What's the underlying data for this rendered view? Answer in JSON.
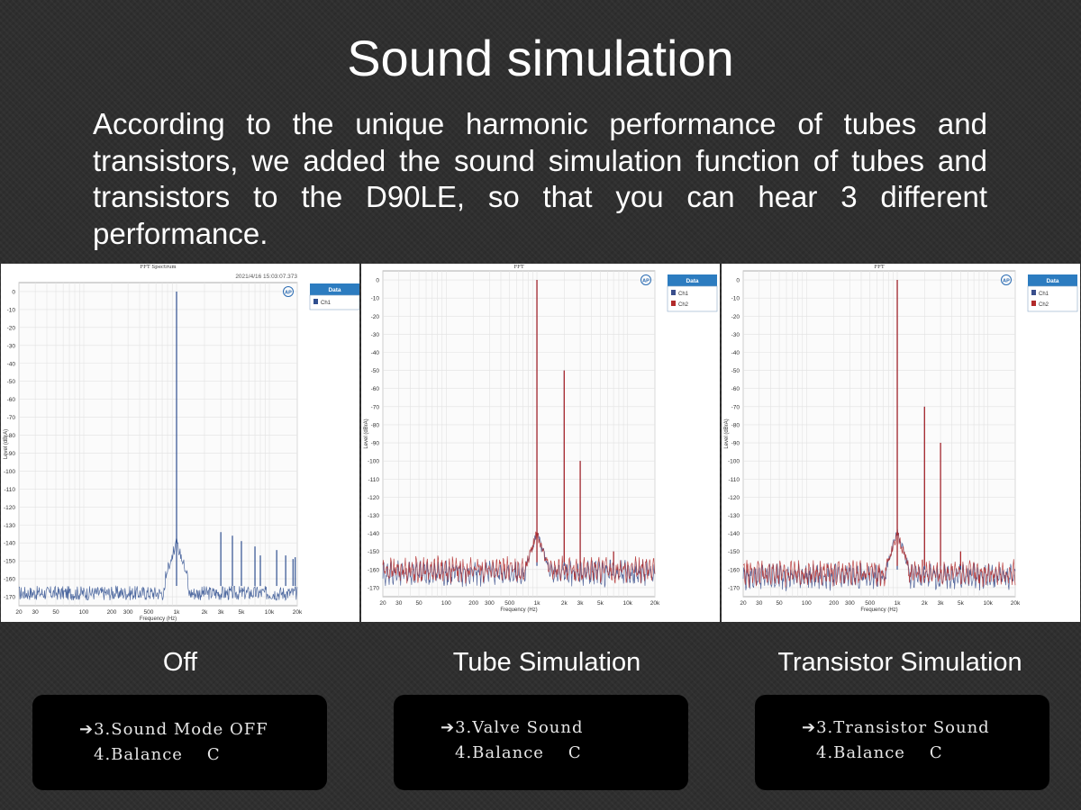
{
  "page": {
    "title": "Sound simulation",
    "description": "According to the unique harmonic performance of tubes and transistors, we added the sound simulation function of tubes and transistors to the D90LE, so that you can hear 3 different performance."
  },
  "sections": [
    {
      "caption": "Off",
      "display": {
        "line1": "➔3.Sound Mode OFF",
        "line2": "4.Balance    C"
      }
    },
    {
      "caption": "Tube Simulation",
      "display": {
        "line1": "➔3.Valve Sound",
        "line2": "4.Balance    C"
      }
    },
    {
      "caption": "Transistor Simulation",
      "display": {
        "line1": "➔3.Transistor Sound",
        "line2": "4.Balance    C"
      }
    }
  ],
  "chart_data": [
    {
      "type": "line",
      "title": "FFT Spectrum",
      "timestamp": "2021/4/16 15:03:07.373",
      "xlabel": "Frequency (Hz)",
      "ylabel": "Level (dBrA)",
      "xscale": "log",
      "xlim": [
        20,
        20000
      ],
      "ylim": [
        -175,
        5
      ],
      "x_ticks": [
        20,
        30,
        50,
        100,
        200,
        300,
        500,
        1000,
        2000,
        3000,
        5000,
        10000,
        20000
      ],
      "x_tick_labels": [
        "20",
        "30",
        "50",
        "100",
        "200",
        "300",
        "500",
        "1k",
        "2k",
        "3k",
        "5k",
        "10k",
        "20k"
      ],
      "y_ticks": [
        0,
        -10,
        -20,
        -30,
        -40,
        -50,
        -60,
        -70,
        -80,
        -90,
        -100,
        -110,
        -120,
        -130,
        -140,
        -150,
        -160,
        -170
      ],
      "grid": true,
      "legend": {
        "title": "Data",
        "position": "outside-right"
      },
      "series": [
        {
          "name": "Ch1",
          "color": "#2f4f8f",
          "noise_floor": -168,
          "peaks": [
            [
              1000,
              0
            ],
            [
              3000,
              -134
            ],
            [
              4000,
              -136
            ],
            [
              5000,
              -139
            ],
            [
              7000,
              -142
            ],
            [
              8000,
              -147
            ],
            [
              12000,
              -144
            ],
            [
              15000,
              -147
            ],
            [
              18000,
              -149
            ],
            [
              19000,
              -148
            ]
          ]
        }
      ]
    },
    {
      "type": "line",
      "title": "FFT",
      "xlabel": "Frequency (Hz)",
      "ylabel": "Level (dBrA)",
      "xscale": "log",
      "xlim": [
        20,
        20000
      ],
      "ylim": [
        -175,
        5
      ],
      "x_ticks": [
        20,
        30,
        50,
        100,
        200,
        300,
        500,
        1000,
        2000,
        3000,
        5000,
        10000,
        20000
      ],
      "x_tick_labels": [
        "20",
        "30",
        "50",
        "100",
        "200",
        "300",
        "500",
        "1k",
        "2k",
        "3k",
        "5k",
        "10k",
        "20k"
      ],
      "y_ticks": [
        0,
        -10,
        -20,
        -30,
        -40,
        -50,
        -60,
        -70,
        -80,
        -90,
        -100,
        -110,
        -120,
        -130,
        -140,
        -150,
        -160,
        -170
      ],
      "grid": true,
      "legend": {
        "title": "Data",
        "position": "outside-right"
      },
      "series": [
        {
          "name": "Ch1",
          "color": "#3a4f8c",
          "noise_floor": -162,
          "peaks": [
            [
              1000,
              0
            ],
            [
              2000,
              -50
            ],
            [
              3000,
              -100
            ],
            [
              7000,
              -150
            ]
          ]
        },
        {
          "name": "Ch2",
          "color": "#b22a2a",
          "noise_floor": -160,
          "peaks": [
            [
              1000,
              0
            ],
            [
              2000,
              -50
            ],
            [
              3000,
              -100
            ],
            [
              7000,
              -150
            ]
          ]
        }
      ]
    },
    {
      "type": "line",
      "title": "FFT",
      "xlabel": "Frequency (Hz)",
      "ylabel": "Level (dBrA)",
      "xscale": "log",
      "xlim": [
        20,
        20000
      ],
      "ylim": [
        -175,
        5
      ],
      "x_ticks": [
        20,
        30,
        50,
        100,
        200,
        300,
        500,
        1000,
        2000,
        3000,
        5000,
        10000,
        20000
      ],
      "x_tick_labels": [
        "20",
        "30",
        "50",
        "100",
        "200",
        "300",
        "500",
        "1k",
        "2k",
        "3k",
        "5k",
        "10k",
        "20k"
      ],
      "y_ticks": [
        0,
        -10,
        -20,
        -30,
        -40,
        -50,
        -60,
        -70,
        -80,
        -90,
        -100,
        -110,
        -120,
        -130,
        -140,
        -150,
        -160,
        -170
      ],
      "grid": true,
      "legend": {
        "title": "Data",
        "position": "outside-right"
      },
      "series": [
        {
          "name": "Ch1",
          "color": "#3a4f8c",
          "noise_floor": -164,
          "peaks": [
            [
              1000,
              0
            ],
            [
              2000,
              -70
            ],
            [
              3000,
              -90
            ],
            [
              5000,
              -150
            ]
          ]
        },
        {
          "name": "Ch2",
          "color": "#b22a2a",
          "noise_floor": -162,
          "peaks": [
            [
              1000,
              0
            ],
            [
              2000,
              -70
            ],
            [
              3000,
              -90
            ],
            [
              5000,
              -150
            ]
          ]
        }
      ]
    }
  ]
}
